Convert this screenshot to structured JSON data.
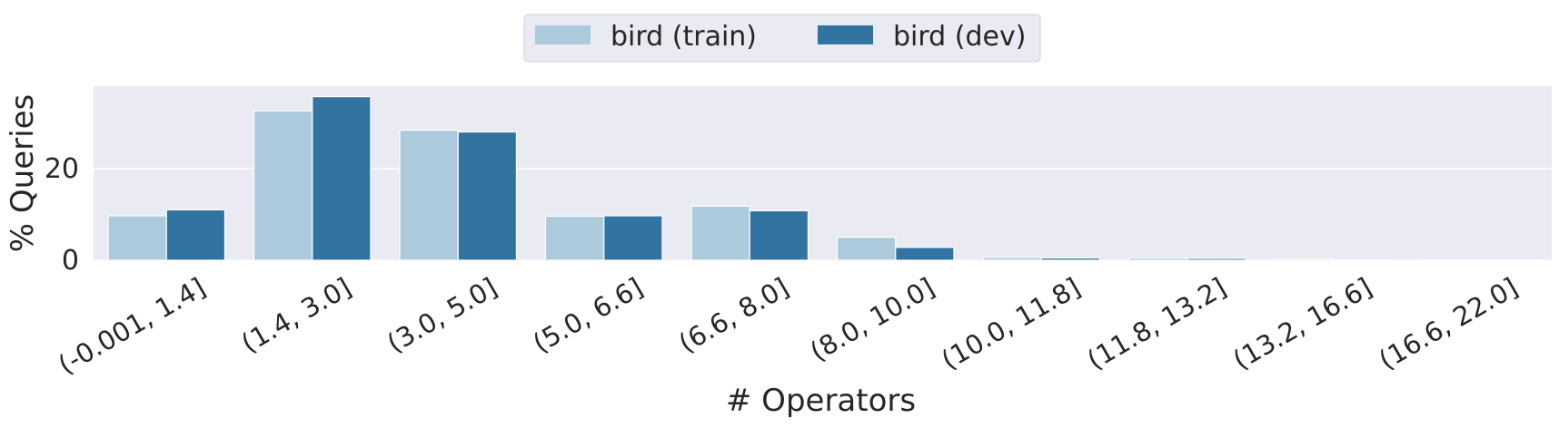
{
  "chart_data": {
    "type": "bar",
    "categories": [
      "(-0.001, 1.4]",
      "(1.4, 3.0]",
      "(3.0, 5.0]",
      "(5.0, 6.6]",
      "(6.6, 8.0]",
      "(8.0, 10.0]",
      "(10.0, 11.8]",
      "(11.8, 13.2]",
      "(13.2, 16.6]",
      "(16.6, 22.0]"
    ],
    "series": [
      {
        "name": "bird (train)",
        "color": "#abcbdd",
        "values": [
          9.7,
          32.6,
          28.4,
          9.6,
          11.8,
          5.0,
          0.6,
          0.5,
          0.3,
          0.1
        ]
      },
      {
        "name": "bird (dev)",
        "color": "#3274a1",
        "values": [
          11.0,
          35.7,
          28.0,
          9.7,
          10.8,
          2.8,
          0.5,
          0.4,
          0.1,
          0.1
        ]
      }
    ],
    "xlabel": "# Operators",
    "ylabel": "% Queries",
    "yticks": [
      0,
      20
    ],
    "ylim": [
      0,
      38
    ],
    "grid": true,
    "legend_position": "top-center",
    "background": "#eaeaf2"
  }
}
